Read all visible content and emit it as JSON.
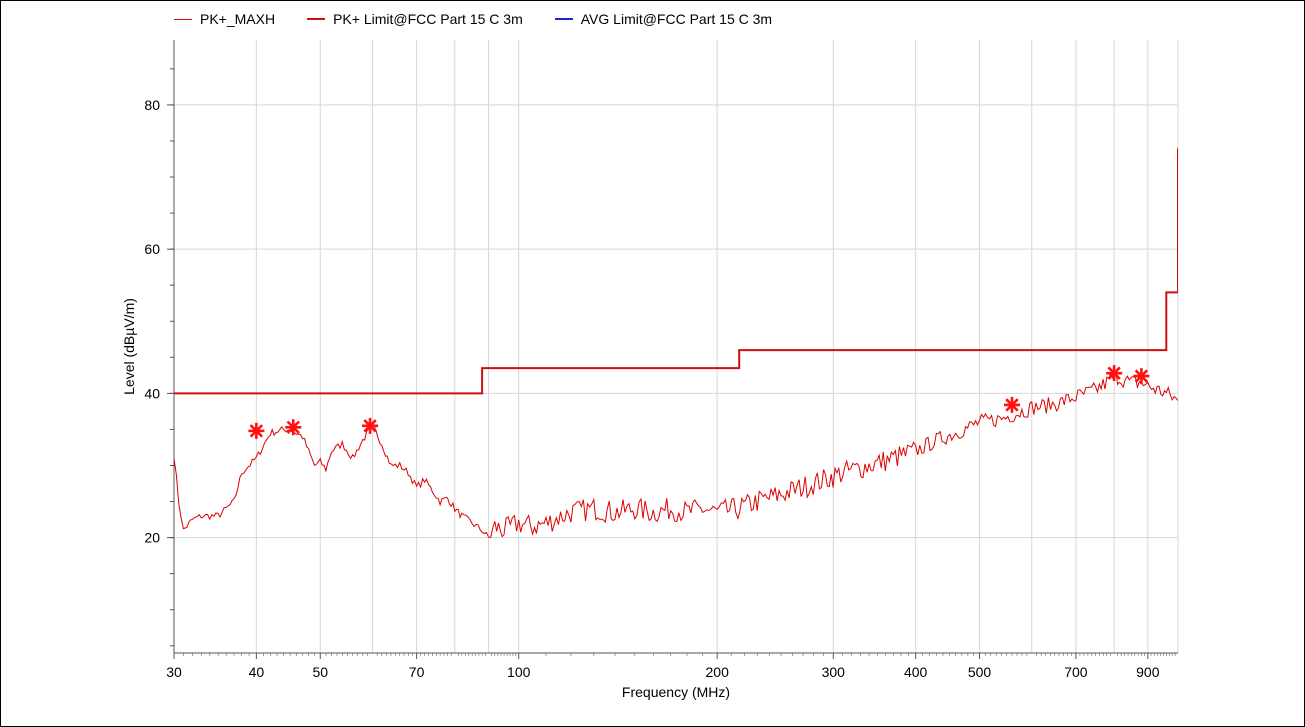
{
  "chart_data": {
    "type": "line",
    "title": "",
    "xlabel": "Frequency (MHz)",
    "ylabel": "Level (dBµV/m)",
    "x_scale": "log",
    "xlim": [
      30,
      1000
    ],
    "ylim": [
      4,
      89
    ],
    "x_ticks": [
      30,
      40,
      50,
      70,
      100,
      200,
      300,
      400,
      500,
      700,
      900
    ],
    "x_tick_labels": [
      "30",
      "40",
      "50",
      "70",
      "100",
      "200",
      "300",
      "400",
      "500",
      "700",
      "900"
    ],
    "y_ticks": [
      20,
      40,
      60,
      80
    ],
    "y_tick_labels": [
      "20",
      "40",
      "60",
      "80"
    ],
    "grid": true,
    "legend_position": "top",
    "series": [
      {
        "name": "PK+_MAXH",
        "color": "#dd0000",
        "x": [
          30,
          30.5,
          31,
          32,
          33,
          35,
          37,
          38,
          40,
          42,
          44,
          45,
          47,
          48,
          49,
          50,
          51,
          52,
          54,
          56,
          58,
          60,
          62,
          64,
          66,
          68,
          70,
          72,
          74,
          76,
          78,
          80,
          82,
          85,
          88,
          90,
          92,
          95,
          100,
          105,
          110,
          120,
          130,
          140,
          150,
          160,
          170,
          180,
          190,
          200,
          215,
          230,
          250,
          270,
          290,
          310,
          340,
          370,
          400,
          430,
          460,
          500,
          540,
          560,
          600,
          650,
          700,
          750,
          780,
          800,
          820,
          850,
          880,
          900,
          930,
          960,
          1000
        ],
        "y": [
          31.5,
          25,
          21,
          22.5,
          23,
          23,
          25,
          29,
          31,
          34.5,
          35,
          35,
          34,
          32,
          30,
          30.5,
          29.5,
          32,
          33,
          31,
          33.5,
          35.5,
          33,
          30,
          30,
          29,
          27,
          28,
          26.5,
          25,
          25.5,
          24,
          23,
          22,
          21,
          20,
          21.5,
          21,
          22,
          21.5,
          22,
          23.5,
          24,
          23.5,
          24,
          23.5,
          24,
          23.5,
          24,
          23.5,
          24,
          25,
          26,
          27,
          28,
          29,
          30,
          31,
          32,
          33.5,
          34.5,
          36,
          36.5,
          37,
          38,
          38.5,
          39.5,
          40.5,
          41.5,
          42.5,
          42,
          41.5,
          41.5,
          41,
          40.5,
          40,
          39
        ],
        "peaks": [
          {
            "x": 40,
            "y": 34.8
          },
          {
            "x": 45.5,
            "y": 35.3
          },
          {
            "x": 59.5,
            "y": 35.5
          },
          {
            "x": 560,
            "y": 38.4
          },
          {
            "x": 800,
            "y": 42.8
          },
          {
            "x": 880,
            "y": 42.4
          }
        ]
      },
      {
        "name": "PK+ Limit@FCC Part 15 C  3m",
        "color": "#cc1111",
        "x": [
          30,
          88,
          88,
          216,
          216,
          960,
          960,
          1000,
          1000
        ],
        "y": [
          40,
          40,
          43.5,
          43.5,
          46,
          46,
          54,
          54,
          74
        ]
      },
      {
        "name": "AVG Limit@FCC Part 15 C  3m",
        "color": "#2222cc",
        "x": [],
        "y": []
      }
    ]
  }
}
